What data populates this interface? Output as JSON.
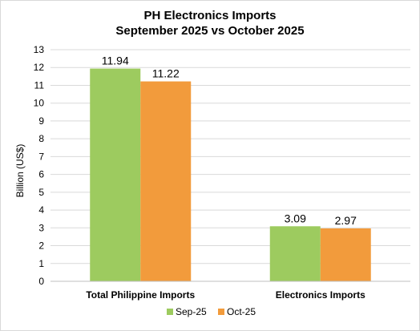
{
  "chart_data": {
    "type": "bar",
    "title": "PH Electronics Imports",
    "subtitle": "September 2025 vs October 2025",
    "xlabel": "",
    "ylabel": "Billion (US$)",
    "ylim": [
      0,
      13
    ],
    "yticks": [
      0,
      1,
      2,
      3,
      4,
      5,
      6,
      7,
      8,
      9,
      10,
      11,
      12,
      13
    ],
    "grid": true,
    "legend_position": "bottom",
    "categories": [
      "Total Philippine Imports",
      "Electronics Imports"
    ],
    "series": [
      {
        "name": "Sep-25",
        "values": [
          11.94,
          3.09
        ],
        "labels": [
          "11.94",
          "3.09"
        ],
        "color": "#9dcb5f"
      },
      {
        "name": "Oct-25",
        "values": [
          11.22,
          2.97
        ],
        "labels": [
          "11.22",
          "2.97"
        ],
        "color": "#f29b3c"
      }
    ]
  },
  "colors": {
    "gridline": "#d9d9d9",
    "axis": "#bfbfbf",
    "border": "#d9d9d9"
  }
}
